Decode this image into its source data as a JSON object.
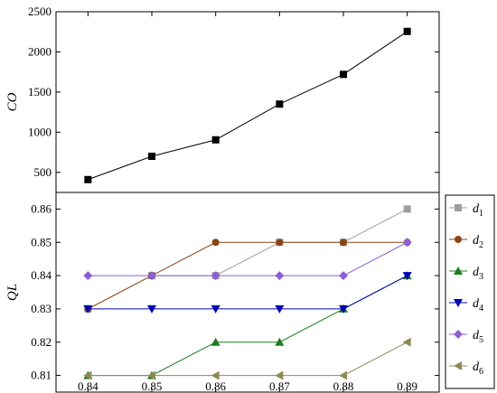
{
  "chart_data": [
    {
      "type": "line",
      "ylabel": "CO",
      "xlabel": "",
      "xlim": [
        0.835,
        0.895
      ],
      "ylim": [
        250,
        2500
      ],
      "yticks": [
        500,
        1000,
        1500,
        2000,
        2500
      ],
      "x": [
        0.84,
        0.85,
        0.86,
        0.87,
        0.88,
        0.89
      ],
      "series": [
        {
          "values": [
            410,
            700,
            905,
            1350,
            1720,
            2255
          ],
          "color": "#000000",
          "marker": "square"
        }
      ]
    },
    {
      "type": "line",
      "ylabel": "QL",
      "xlabel": "",
      "xlim": [
        0.835,
        0.895
      ],
      "ylim": [
        0.805,
        0.865
      ],
      "yticks": [
        "0.81",
        "0.82",
        "0.83",
        "0.84",
        "0.85",
        "0.86"
      ],
      "xticks": [
        "0.84",
        "0.85",
        "0.86",
        "0.87",
        "0.88",
        "0.89"
      ],
      "x": [
        0.84,
        0.85,
        0.86,
        0.87,
        0.88,
        0.89
      ],
      "legend": "right",
      "series": [
        {
          "name": "d",
          "sub": "1",
          "values": [
            0.83,
            0.84,
            0.84,
            0.85,
            0.85,
            0.86
          ],
          "color": "#9e9e9e",
          "marker": "square"
        },
        {
          "name": "d",
          "sub": "2",
          "values": [
            0.83,
            0.84,
            0.85,
            0.85,
            0.85,
            0.85
          ],
          "color": "#8b4513",
          "marker": "circle"
        },
        {
          "name": "d",
          "sub": "3",
          "values": [
            0.81,
            0.81,
            0.82,
            0.82,
            0.83,
            0.84
          ],
          "color": "#1e7d1e",
          "marker": "triangle-up"
        },
        {
          "name": "d",
          "sub": "4",
          "values": [
            0.83,
            0.83,
            0.83,
            0.83,
            0.83,
            0.84
          ],
          "color": "#0000b0",
          "marker": "triangle-down"
        },
        {
          "name": "d",
          "sub": "5",
          "values": [
            0.84,
            0.84,
            0.84,
            0.84,
            0.84,
            0.85
          ],
          "color": "#8e5fd0",
          "marker": "diamond"
        },
        {
          "name": "d",
          "sub": "6",
          "values": [
            0.81,
            0.81,
            0.81,
            0.81,
            0.81,
            0.82
          ],
          "color": "#8f8a55",
          "marker": "triangle-left"
        }
      ]
    }
  ]
}
